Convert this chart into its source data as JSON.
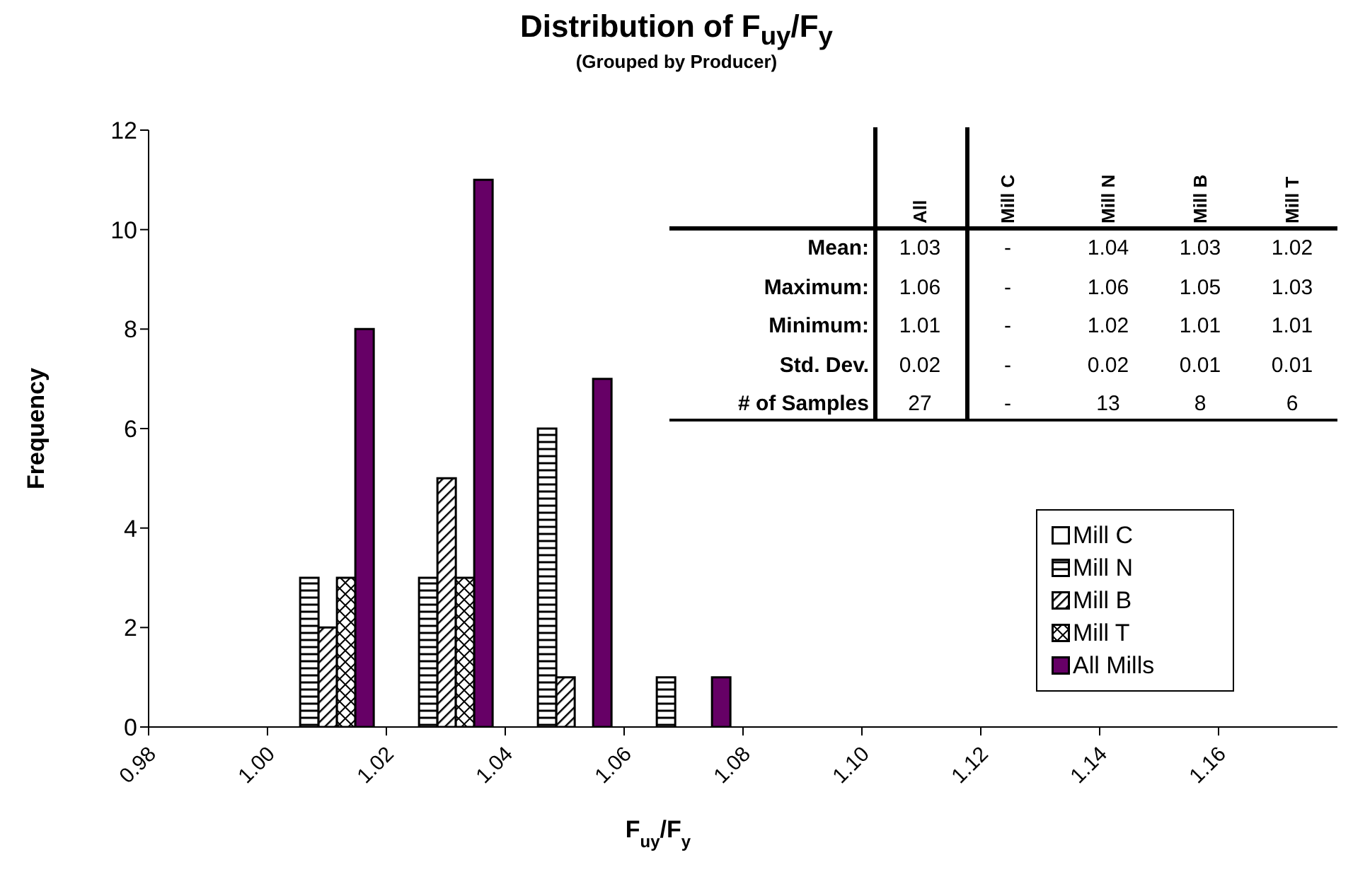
{
  "chart_data": {
    "type": "bar",
    "title": "Distribution of F$_{uy}$/F$_{y}$",
    "subtitle": "(Grouped by Producer)",
    "xlabel": "F$_{uy}$/F$_{y}$",
    "ylabel": "Frequency",
    "x": [
      0.99,
      1.01,
      1.03,
      1.05,
      1.07,
      1.09,
      1.11,
      1.13,
      1.15,
      1.17
    ],
    "series": [
      {
        "name": "Mill C",
        "color": "#ffffff",
        "values": [
          0,
          0,
          0,
          0,
          0,
          0,
          0,
          0,
          0,
          0
        ]
      },
      {
        "name": "Mill N",
        "color": "#000000",
        "values": [
          0,
          3,
          3,
          6,
          1,
          0,
          0,
          0,
          0,
          0
        ]
      },
      {
        "name": "Mill B",
        "color": "#000000",
        "values": [
          0,
          2,
          5,
          1,
          0,
          0,
          0,
          0,
          0,
          0
        ]
      },
      {
        "name": "Mill T",
        "color": "#000000",
        "values": [
          0,
          3,
          3,
          0,
          0,
          0,
          0,
          0,
          0,
          0
        ]
      },
      {
        "name": "All Mills",
        "color": "#660066",
        "values": [
          0,
          8,
          11,
          7,
          1,
          0,
          0,
          0,
          0,
          0
        ]
      }
    ],
    "xlim": [
      0.98,
      1.18
    ],
    "xticks": [
      {
        "value": 0.98,
        "label": "0.98"
      },
      {
        "value": 1.0,
        "label": "1.00"
      },
      {
        "value": 1.02,
        "label": "1.02"
      },
      {
        "value": 1.04,
        "label": "1.04"
      },
      {
        "value": 1.06,
        "label": "1.06"
      },
      {
        "value": 1.08,
        "label": "1.08"
      },
      {
        "value": 1.1,
        "label": "1.10"
      },
      {
        "value": 1.12,
        "label": "1.12"
      },
      {
        "value": 1.14,
        "label": "1.14"
      },
      {
        "value": 1.16,
        "label": "1.16"
      }
    ],
    "ylim": [
      0,
      12
    ],
    "yticks": [
      0,
      2,
      4,
      6,
      8,
      10,
      12
    ],
    "grid": false,
    "legend": "right",
    "annotations": [
      "All",
      "Mill C",
      "Mill N",
      "Mill B",
      "Mill T",
      "Mean:",
      "1.03",
      "-",
      "1.04",
      "1.03",
      "1.02",
      "Maximum:",
      "1.06",
      "-",
      "1.06",
      "1.05",
      "1.03",
      "Minimum:",
      "1.01",
      "-",
      "1.02",
      "1.01",
      "1.01",
      "Std. Dev.",
      "0.02",
      "-",
      "0.02",
      "0.01",
      "0.01",
      "# of Samples",
      "27",
      "-",
      "13",
      "8",
      "6"
    ]
  }
}
